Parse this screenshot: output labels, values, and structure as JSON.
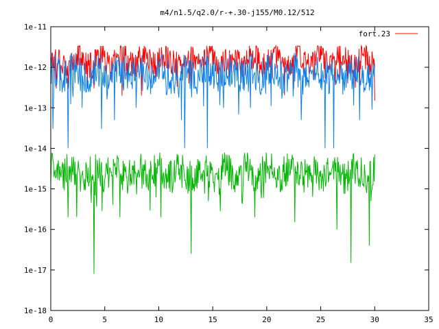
{
  "chart_data": {
    "type": "line",
    "title": "m4/n1.5/q2.0/r-+.30-j155/M0.12/512",
    "xlabel": "",
    "ylabel": "",
    "xlim": [
      0,
      35
    ],
    "ylim": [
      1e-18,
      1e-11
    ],
    "yscale": "log",
    "grid": false,
    "legend_position": "top-right",
    "x_ticks": [
      "0",
      "5",
      "10",
      "15",
      "20",
      "25",
      "30",
      "35"
    ],
    "x_tick_values": [
      0,
      5,
      10,
      15,
      20,
      25,
      30,
      35
    ],
    "y_ticks": [
      "1e-18",
      "1e-17",
      "1e-16",
      "1e-15",
      "1e-14",
      "1e-13",
      "1e-12",
      "1e-11"
    ],
    "y_tick_exponents": [
      -18,
      -17,
      -16,
      -15,
      -14,
      -13,
      -12,
      -11
    ],
    "series": [
      {
        "name": "fort.23",
        "color": "#ff0000",
        "x_range": [
          0,
          30
        ],
        "typical_value": 1.5e-12,
        "typical_high": 3e-12,
        "typical_low": 5e-13,
        "dips": [
          [
            0.5,
            3e-13
          ],
          [
            1.6,
            3e-13
          ],
          [
            6.6,
            2e-13
          ],
          [
            8.4,
            2e-13
          ],
          [
            12.8,
            4e-13
          ],
          [
            22.5,
            3e-13
          ],
          [
            27.5,
            4e-13
          ],
          [
            30,
            1.5e-13
          ]
        ]
      },
      {
        "name": "",
        "color": "#0a7fe8",
        "x_range": [
          0,
          30
        ],
        "typical_value": 7e-13,
        "typical_high": 2e-12,
        "typical_low": 2e-13,
        "dips": [
          [
            0.2,
            3e-14
          ],
          [
            1.6,
            1e-14
          ],
          [
            2.9,
            1e-13
          ],
          [
            4.7,
            3e-14
          ],
          [
            5.9,
            5e-14
          ],
          [
            7.9,
            1e-13
          ],
          [
            12.1,
            5e-14
          ],
          [
            12.4,
            1e-14
          ],
          [
            14.5,
            1e-14
          ],
          [
            16.0,
            1e-13
          ],
          [
            18.5,
            1e-13
          ],
          [
            23.2,
            5e-14
          ],
          [
            25.4,
            1e-14
          ],
          [
            26.2,
            1e-14
          ],
          [
            28.6,
            5e-14
          ]
        ]
      },
      {
        "name": "",
        "color": "#00b400",
        "x_range": [
          0,
          30
        ],
        "typical_value": 2.5e-15,
        "typical_high": 7e-15,
        "typical_low": 7e-16,
        "dips": [
          [
            1.6,
            2e-16
          ],
          [
            4.0,
            8e-18
          ],
          [
            6.4,
            2e-16
          ],
          [
            10.2,
            2e-16
          ],
          [
            13.0,
            2.5e-17
          ],
          [
            18.9,
            2e-16
          ],
          [
            22.6,
            1.5e-16
          ],
          [
            26.5,
            1e-16
          ],
          [
            27.8,
            1.5e-17
          ],
          [
            29.5,
            4e-17
          ]
        ]
      }
    ]
  }
}
